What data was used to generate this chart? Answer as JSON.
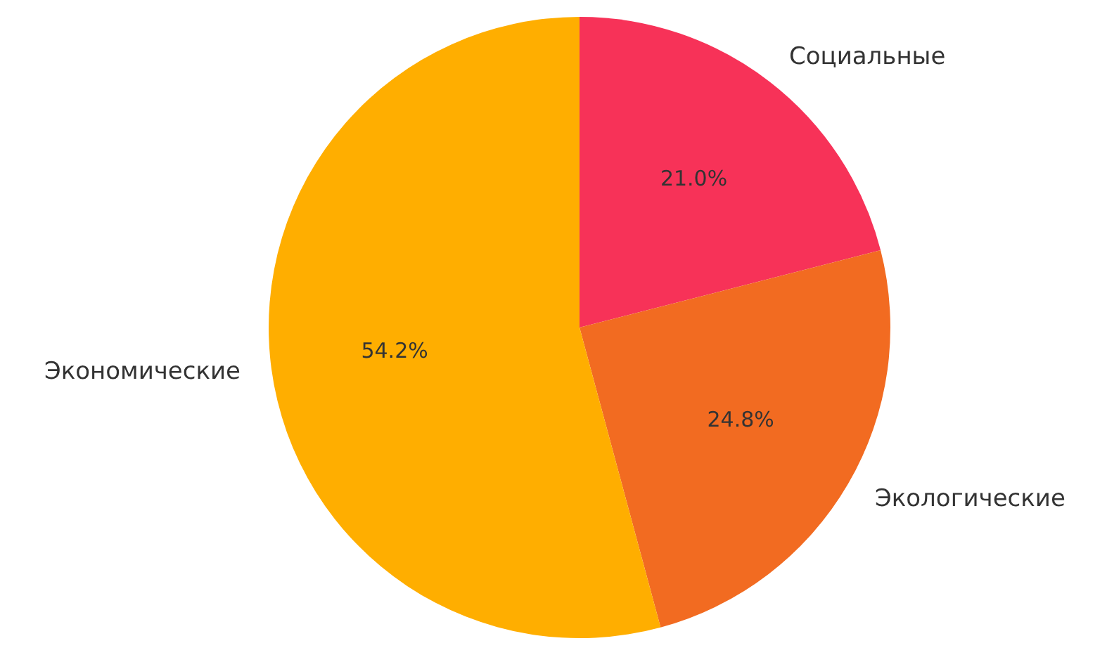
{
  "chart_data": {
    "type": "pie",
    "categories": [
      "Социальные",
      "Экологические",
      "Экономические"
    ],
    "values": [
      21.0,
      24.8,
      54.2
    ],
    "colors": [
      "#f73258",
      "#f26b21",
      "#ffae00"
    ],
    "value_labels": [
      "21.0%",
      "24.8%",
      "54.2%"
    ]
  }
}
